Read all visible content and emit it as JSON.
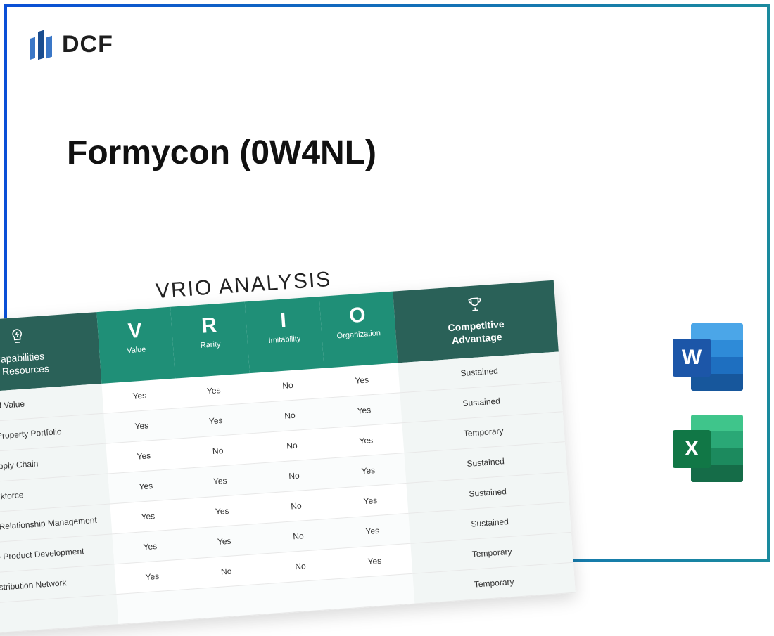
{
  "brand": {
    "name": "DCF"
  },
  "title": "Formycon (0W4NL)",
  "table": {
    "heading": "VRIO ANALYSIS",
    "header_dark_bg": "#2a6158",
    "header_green_bg": "#1f8f77",
    "row_alt_bg": "#f2f6f5",
    "columns": {
      "capabilities": {
        "label": "Capabilities\nor Resources",
        "icon": "bulb"
      },
      "v": {
        "letter": "V",
        "label": "Value"
      },
      "r": {
        "letter": "R",
        "label": "Rarity"
      },
      "i": {
        "letter": "I",
        "label": "Imitability"
      },
      "o": {
        "letter": "O",
        "label": "Organization"
      },
      "advantage": {
        "label": "Competitive\nAdvantage",
        "icon": "trophy"
      }
    },
    "rows": [
      {
        "cap": "Strong Brand Value",
        "v": "Yes",
        "r": "Yes",
        "i": "No",
        "o": "Yes",
        "adv": "Sustained"
      },
      {
        "cap": "Intellectual Property Portfolio",
        "v": "Yes",
        "r": "Yes",
        "i": "No",
        "o": "Yes",
        "adv": "Sustained"
      },
      {
        "cap": "Efficient Supply Chain",
        "v": "Yes",
        "r": "No",
        "i": "No",
        "o": "Yes",
        "adv": "Temporary"
      },
      {
        "cap": "Skilled Workforce",
        "v": "Yes",
        "r": "Yes",
        "i": "No",
        "o": "Yes",
        "adv": "Sustained"
      },
      {
        "cap": "Customer Relationship Management",
        "v": "Yes",
        "r": "Yes",
        "i": "No",
        "o": "Yes",
        "adv": "Sustained"
      },
      {
        "cap": "Innovative Product Development",
        "v": "Yes",
        "r": "Yes",
        "i": "No",
        "o": "Yes",
        "adv": "Sustained"
      },
      {
        "cap": "Global Distribution Network",
        "v": "Yes",
        "r": "No",
        "i": "No",
        "o": "Yes",
        "adv": "Temporary"
      },
      {
        "cap": "",
        "v": "",
        "r": "",
        "i": "",
        "o": "",
        "adv": "Temporary"
      }
    ]
  },
  "file_icons": {
    "word": {
      "letter": "W",
      "badge_color": "#1c56a8"
    },
    "excel": {
      "letter": "X",
      "badge_color": "#117746"
    }
  },
  "frame_gradient": [
    "#0a4fd6",
    "#1a8a9e"
  ]
}
